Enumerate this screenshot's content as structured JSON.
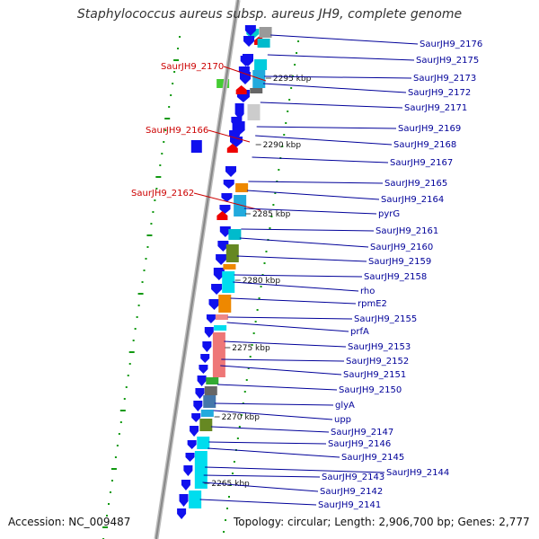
{
  "title": "Staphylococcus aureus subsp. aureus JH9, complete genome",
  "accession": "Accession: NC_009487",
  "topology": "Topology: circular; Length: 2,906,700 bp; Genes: 2,777",
  "colors": {
    "arrow": "#1010ee",
    "left_label": "#cc0000",
    "right_label": "#000099",
    "backbone": "#999999",
    "gc_dot": "#119911"
  },
  "kbp_marks": [
    "2295 kbp",
    "2290 kbp",
    "2285 kbp",
    "2280 kbp",
    "2275 kbp",
    "2270 kbp",
    "2265 kbp"
  ],
  "left_labels": [
    "SaurJH9_2170",
    "SaurJH9_2166",
    "SaurJH9_2162"
  ],
  "right_labels": [
    "SaurJH9_2176",
    "SaurJH9_2175",
    "SaurJH9_2173",
    "SaurJH9_2172",
    "SaurJH9_2171",
    "SaurJH9_2169",
    "SaurJH9_2168",
    "SaurJH9_2167",
    "SaurJH9_2165",
    "SaurJH9_2164",
    "pyrG",
    "SaurJH9_2161",
    "SaurJH9_2160",
    "SaurJH9_2159",
    "SaurJH9_2158",
    "rho",
    "rpmE2",
    "SaurJH9_2155",
    "prfA",
    "SaurJH9_2153",
    "SaurJH9_2152",
    "SaurJH9_2151",
    "SaurJH9_2150",
    "glyA",
    "upp",
    "SaurJH9_2147",
    "SaurJH9_2146",
    "SaurJH9_2145",
    "SaurJH9_2144",
    "SaurJH9_2143",
    "SaurJH9_2142",
    "SaurJH9_2141"
  ]
}
